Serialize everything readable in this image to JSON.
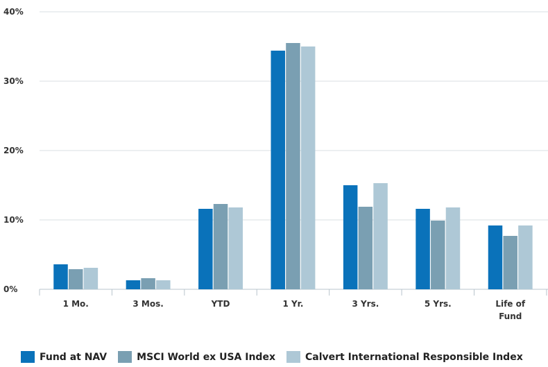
{
  "chart_data": {
    "type": "bar",
    "categories": [
      [
        "1 Mo."
      ],
      [
        "3 Mos."
      ],
      [
        "YTD"
      ],
      [
        "1 Yr."
      ],
      [
        "3 Yrs."
      ],
      [
        "5 Yrs."
      ],
      [
        "Life of",
        "Fund"
      ]
    ],
    "series": [
      {
        "name": "Fund at NAV",
        "color": "#0a72ba",
        "values": [
          3.6,
          1.3,
          11.6,
          34.4,
          15.0,
          11.6,
          9.2
        ]
      },
      {
        "name": "MSCI World ex USA Index",
        "color": "#7a9fb2",
        "values": [
          2.9,
          1.6,
          12.3,
          35.5,
          11.9,
          9.9,
          7.7
        ]
      },
      {
        "name": "Calvert International Responsible Index",
        "color": "#aec8d6",
        "values": [
          3.1,
          1.3,
          11.8,
          35.0,
          15.3,
          11.8,
          9.2
        ]
      }
    ],
    "yticks": [
      "0%",
      "10%",
      "20%",
      "30%",
      "40%"
    ],
    "ylim": [
      0,
      40
    ],
    "grid": true,
    "legend_position": "bottom-left"
  }
}
